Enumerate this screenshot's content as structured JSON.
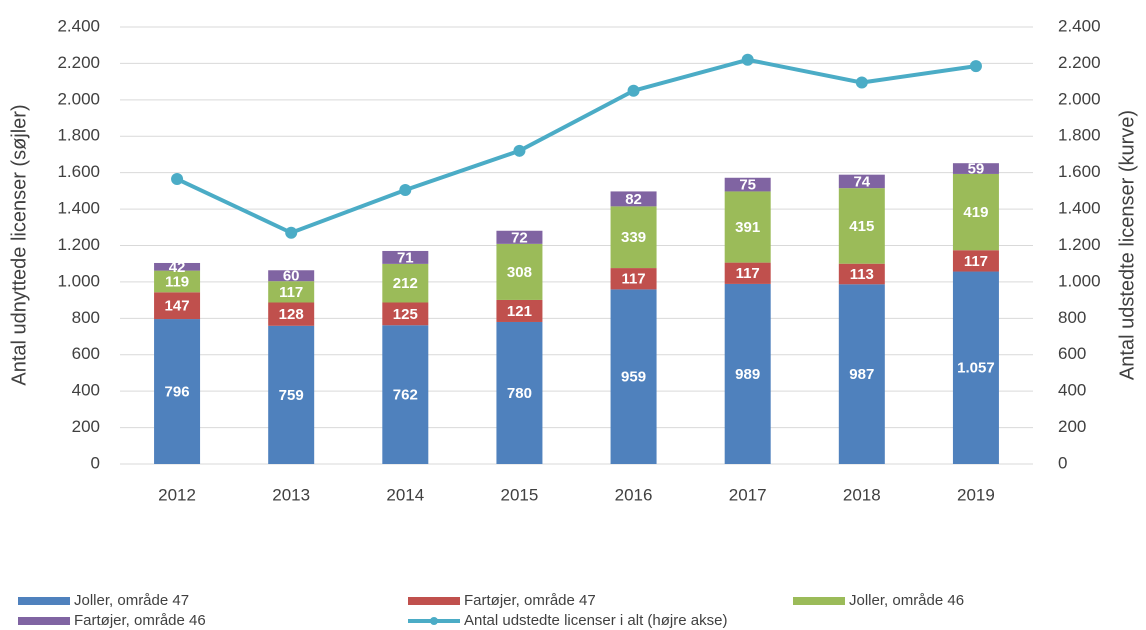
{
  "chart_data": {
    "type": "bar",
    "stacked": true,
    "y_label": "Antal udnyttede licenser (søjler)",
    "y2_label": "Antal udstedte licenser (kurve)",
    "categories": [
      "2012",
      "2013",
      "2014",
      "2015",
      "2016",
      "2017",
      "2018",
      "2019"
    ],
    "series": [
      {
        "name": "Joller, område 47",
        "color": "#4f81bd",
        "values": [
          796,
          759,
          762,
          780,
          959,
          989,
          987,
          1057
        ],
        "value_labels": [
          "796",
          "759",
          "762",
          "780",
          "959",
          "989",
          "987",
          "1.057"
        ]
      },
      {
        "name": "Fartøjer, område 47",
        "color": "#c0504d",
        "values": [
          147,
          128,
          125,
          121,
          117,
          117,
          113,
          117
        ]
      },
      {
        "name": "Joller, område 46",
        "color": "#9bbb59",
        "values": [
          119,
          117,
          212,
          308,
          339,
          391,
          415,
          419
        ]
      },
      {
        "name": "Fartøjer, område 46",
        "color": "#8064a2",
        "values": [
          42,
          60,
          71,
          72,
          82,
          75,
          74,
          59
        ]
      },
      {
        "name": "Antal udstedte licenser i alt (højre akse)",
        "color": "#4bacc6",
        "type": "line",
        "axis": "y2",
        "values": [
          1565,
          1270,
          1505,
          1720,
          2050,
          2220,
          2095,
          2185
        ]
      }
    ],
    "ylim": [
      0,
      2400
    ],
    "yticks": [
      0,
      200,
      400,
      600,
      800,
      {
        "value": 1000,
        "label": "1.000"
      },
      {
        "value": 1200,
        "label": "1.200"
      },
      {
        "value": 1400,
        "label": "1.400"
      },
      {
        "value": 1600,
        "label": "1.600"
      },
      {
        "value": 1800,
        "label": "1.800"
      },
      {
        "value": 2000,
        "label": "2.000"
      },
      {
        "value": 2200,
        "label": "2.200"
      },
      {
        "value": 2400,
        "label": "2.400"
      }
    ],
    "y2lim": [
      0,
      2400
    ],
    "y2ticks": [
      0,
      200,
      400,
      600,
      800,
      {
        "value": 1000,
        "label": "1.000"
      },
      {
        "value": 1200,
        "label": "1.200"
      },
      {
        "value": 1400,
        "label": "1.400"
      },
      {
        "value": 1600,
        "label": "1.600"
      },
      {
        "value": 1800,
        "label": "1.800"
      },
      {
        "value": 2000,
        "label": "2.000"
      },
      {
        "value": 2200,
        "label": "2.200"
      },
      {
        "value": 2400,
        "label": "2.400"
      }
    ],
    "grid": true,
    "legend": "bottom"
  }
}
